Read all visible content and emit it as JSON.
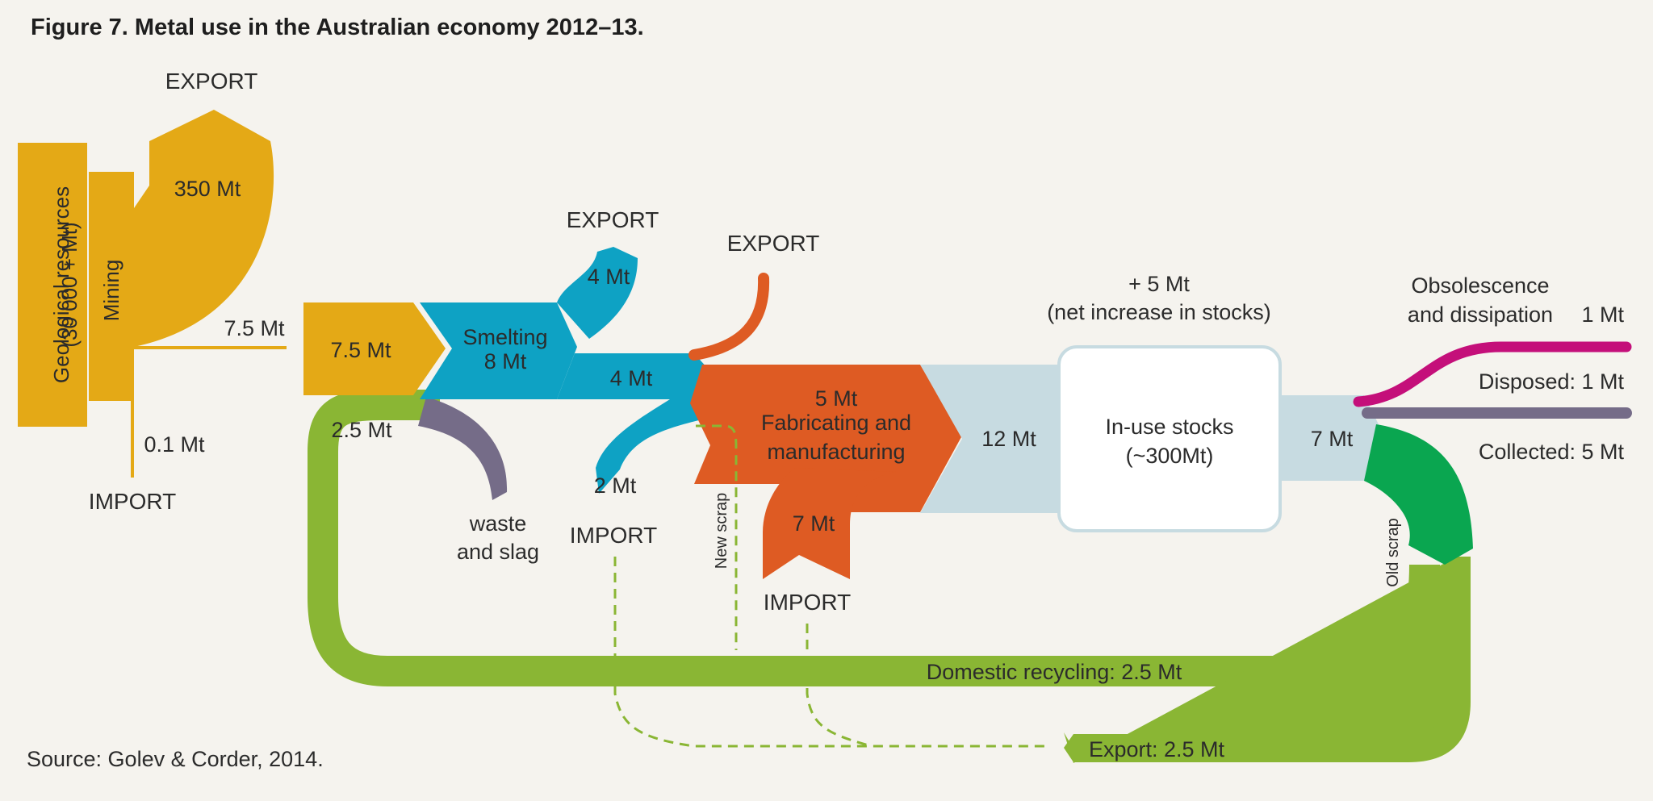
{
  "title": "Figure 7. Metal use in the Australian economy 2012–13.",
  "source": "Source: Golev & Corder, 2014.",
  "colors": {
    "background": "#f5f3ee",
    "mining": "#e4a916",
    "smelting": "#0ea2c4",
    "fabricating": "#de5b23",
    "stocks": "#c7dbe1",
    "waste": "#756c88",
    "recycling": "#8ab634",
    "collected": "#0aa650",
    "obsolescence": "#c40f7a",
    "disposed": "#756c88"
  },
  "labels": {
    "geo_line1": "Geological resources",
    "geo_line2": "(30 000 + Mt)",
    "mining": "Mining",
    "export_mining": "EXPORT",
    "mining_export_value": "350 Mt",
    "mining_output": "7.5 Mt",
    "mining_import_value": "0.1 Mt",
    "import_mining": "IMPORT",
    "smelting_input": "7.5 Mt",
    "smelting_line1": "Smelting",
    "smelting_line2": "8 Mt",
    "export_smelting": "EXPORT",
    "smelting_export_value": "4 Mt",
    "smelting_output": "4 Mt",
    "smelting_import_value": "2 Mt",
    "import_smelting": "IMPORT",
    "recycling_input_value": "2.5 Mt",
    "waste_line1": "waste",
    "waste_line2": "and slag",
    "export_fabricating": "EXPORT",
    "fab_value": "5 Mt",
    "fab_line1": "Fabricating and",
    "fab_line2": "manufacturing",
    "fab_import_value": "7 Mt",
    "import_fabricating": "IMPORT",
    "new_scrap": "New scrap",
    "stocks_input": "12 Mt",
    "net_increase_line1": "+ 5 Mt",
    "net_increase_line2": "(net increase in stocks)",
    "stocks_line1": "In-use stocks",
    "stocks_line2": "(~300Mt)",
    "stocks_output": "7 Mt",
    "obsolescence_line1": "Obsolescence",
    "obsolescence_line2": "and dissipation",
    "obsolescence_value": "1 Mt",
    "disposed": "Disposed: 1 Mt",
    "collected": "Collected: 5 Mt",
    "old_scrap": "Old scrap",
    "domestic_recycling": "Domestic recycling: 2.5 Mt",
    "export_recycling": "Export: 2.5 Mt"
  }
}
